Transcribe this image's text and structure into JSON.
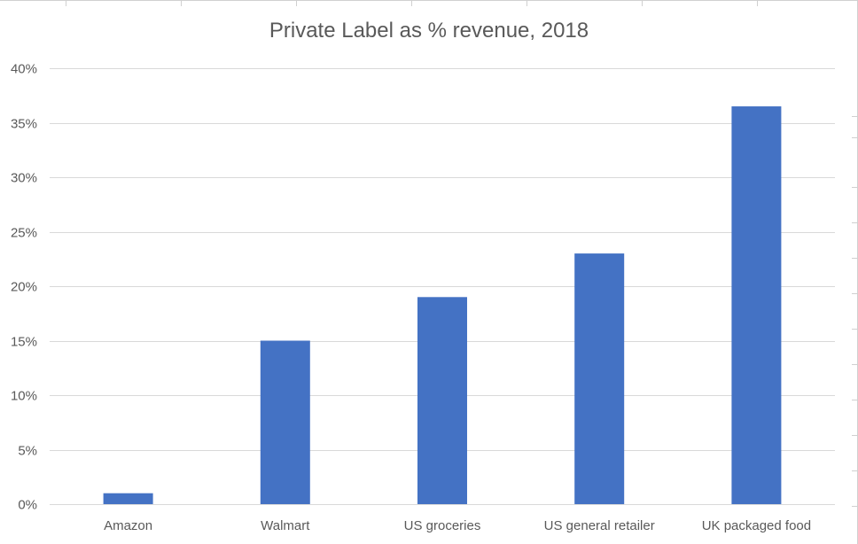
{
  "chart_data": {
    "type": "bar",
    "title": "Private Label as % revenue, 2018",
    "categories": [
      "Amazon",
      "Walmart",
      "US groceries",
      "US general retailer",
      "UK packaged food"
    ],
    "series": [
      {
        "name": "Private Label as % revenue",
        "values": [
          1,
          15,
          19,
          23,
          36.5
        ]
      }
    ],
    "ylim": [
      0,
      40
    ],
    "yticks": [
      "0%",
      "5%",
      "10%",
      "15%",
      "20%",
      "25%",
      "30%",
      "35%",
      "40%"
    ],
    "xlabel": "",
    "ylabel": "",
    "grid": true,
    "bar_color": "#4472C4",
    "grid_color": "#D9D9D9",
    "text_color": "#595959"
  }
}
